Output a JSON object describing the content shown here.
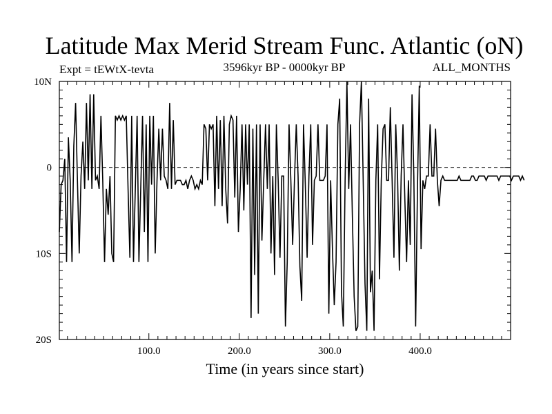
{
  "chart_data": {
    "type": "line",
    "title": "Latitude Max Merid Stream Func. Atlantic (oN)",
    "subtitle_left": "Expt = tEWtX-tevta",
    "subtitle_center": "3596kyr BP - 0000kyr BP",
    "subtitle_right": "ALL_MONTHS",
    "xlabel": "Time (in years since start)",
    "ylabel": "",
    "xlim": [
      1,
      500
    ],
    "ylim": [
      -20,
      10
    ],
    "xticks": [
      {
        "value": 100,
        "label": "100.0"
      },
      {
        "value": 200,
        "label": "200.0"
      },
      {
        "value": 300,
        "label": "300.0"
      },
      {
        "value": 400,
        "label": "400.0"
      }
    ],
    "yticks": [
      {
        "value": 10,
        "label": "10N"
      },
      {
        "value": 0,
        "label": "0"
      },
      {
        "value": -10,
        "label": "10S"
      },
      {
        "value": -20,
        "label": "20S"
      }
    ],
    "zero_line": true,
    "series": [
      {
        "name": "Latitude Max Merid Stream Func. Atlantic",
        "x_start": 1,
        "x_step": 2,
        "values": [
          -7.5,
          -2.0,
          -1.5,
          1.0,
          -11.0,
          3.5,
          -1.5,
          -11.0,
          2.5,
          7.5,
          -1.5,
          -10.0,
          -1.0,
          3.0,
          -2.5,
          7.5,
          -1.5,
          8.5,
          -2.5,
          8.5,
          -1.5,
          -1.0,
          -2.5,
          6.0,
          -1.5,
          -11.0,
          -2.5,
          -5.5,
          -1.0,
          -10.0,
          -11.0,
          6.0,
          5.5,
          6.0,
          5.5,
          6.0,
          5.5,
          6.0,
          -2.5,
          -10.5,
          6.0,
          -11.0,
          -2.5,
          6.0,
          -11.0,
          -2.5,
          6.0,
          -7.5,
          5.0,
          -11.0,
          6.0,
          -2.0,
          6.0,
          -10.0,
          -1.5,
          4.5,
          -1.5,
          4.5,
          -1.0,
          -1.5,
          -2.5,
          7.5,
          -2.5,
          5.5,
          -2.0,
          -1.5,
          -1.5,
          -1.5,
          -2.0,
          -2.0,
          -1.5,
          -2.5,
          -1.5,
          -1.0,
          -1.5,
          -2.5,
          -2.0,
          -2.5,
          -1.5,
          -2.0,
          5.0,
          4.5,
          -1.5,
          5.0,
          4.5,
          5.0,
          -4.5,
          6.0,
          -2.5,
          5.5,
          -4.5,
          6.0,
          -2.5,
          -6.5,
          5.0,
          6.0,
          5.5,
          -3.5,
          6.0,
          -7.5,
          -2.5,
          5.0,
          -5.0,
          5.0,
          -2.0,
          5.0,
          -17.5,
          4.5,
          -12.5,
          5.0,
          -17.0,
          5.0,
          -8.5,
          -1.5,
          5.0,
          -2.5,
          5.0,
          -10.0,
          -1.0,
          -12.5,
          5.0,
          -1.5,
          -10.5,
          -1.0,
          -1.0,
          -18.5,
          -11.0,
          5.0,
          -1.5,
          -9.0,
          -1.5,
          5.0,
          -1.0,
          -11.5,
          -15.5,
          5.0,
          -2.0,
          -10.5,
          -1.0,
          5.0,
          -9.0,
          -1.5,
          -1.0,
          5.0,
          -1.5,
          -1.5,
          -1.5,
          -1.0,
          5.0,
          -17.0,
          -1.5,
          -9.5,
          -16.0,
          -11.0,
          5.0,
          8.0,
          -14.5,
          -18.5,
          -1.5,
          10.0,
          -2.5,
          5.0,
          -5.5,
          -15.0,
          -19.0,
          -18.5,
          5.0,
          10.0,
          -1.5,
          -13.5,
          -19.0,
          8.0,
          -14.5,
          -12.0,
          -19.0,
          -1.5,
          5.0,
          -13.0,
          -1.5,
          4.5,
          5.0,
          -1.5,
          -1.5,
          7.0,
          -1.5,
          -10.5,
          5.0,
          -1.0,
          -12.0,
          -1.0,
          5.0,
          -3.5,
          -11.0,
          -1.5,
          -9.0,
          8.5,
          -1.0,
          -18.5,
          -2.5,
          9.5,
          -9.5,
          -1.5,
          -2.5,
          -1.0,
          -1.0,
          5.0,
          -1.0,
          -1.0,
          4.5,
          -1.5,
          -4.5,
          -1.5,
          -1.0,
          -1.5,
          -1.5,
          -1.5,
          -1.5,
          -1.5,
          -1.5,
          -1.5,
          -1.5,
          -1.0,
          -1.5,
          -1.5,
          -1.5,
          -1.5,
          -1.5,
          -1.5,
          -1.0,
          -1.0,
          -1.5,
          -1.5,
          -1.0,
          -1.0,
          -1.0,
          -1.0,
          -1.5,
          -1.0,
          -1.0,
          -1.0,
          -1.0,
          -1.0,
          -1.0,
          -1.5,
          -1.0,
          -1.0,
          -1.0,
          -1.0,
          -1.0,
          -1.0,
          -1.5,
          -1.0,
          -1.0,
          -1.0,
          -1.0,
          -1.5,
          -1.0,
          -1.5
        ]
      }
    ]
  }
}
